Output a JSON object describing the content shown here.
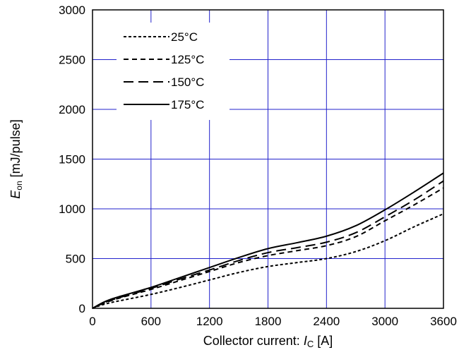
{
  "chart_data": {
    "type": "line",
    "title": "",
    "xlabel": {
      "prefix": "Collector current: ",
      "symbol": "I",
      "subscript": "C",
      "unit": " [A]"
    },
    "ylabel": {
      "symbol": "E",
      "subscript": "on",
      "unit": " [mJ/pulse]"
    },
    "xlim": [
      0,
      3600
    ],
    "ylim": [
      0,
      3000
    ],
    "xticks": [
      0,
      600,
      1200,
      1800,
      2400,
      3000,
      3600
    ],
    "yticks": [
      0,
      500,
      1000,
      1500,
      2000,
      2500,
      3000
    ],
    "xtick_labels": [
      "0",
      "600",
      "1200",
      "1800",
      "2400",
      "3000",
      "3600"
    ],
    "ytick_labels": [
      "0",
      "500",
      "1000",
      "1500",
      "2000",
      "2500",
      "3000"
    ],
    "grid": true,
    "grid_color": "#2222cc",
    "legend_position": "top-left",
    "series": [
      {
        "name": "25°C",
        "dash": "dotted",
        "x": [
          0,
          100,
          200,
          300,
          600,
          900,
          1200,
          1500,
          1800,
          2100,
          2400,
          2700,
          3000,
          3300,
          3600
        ],
        "y": [
          0,
          35,
          60,
          80,
          140,
          210,
          285,
          360,
          420,
          460,
          500,
          570,
          680,
          820,
          950
        ]
      },
      {
        "name": "125°C",
        "dash": "short-dash",
        "x": [
          0,
          100,
          200,
          300,
          600,
          900,
          1200,
          1500,
          1800,
          2100,
          2400,
          2700,
          3000,
          3300,
          3600
        ],
        "y": [
          0,
          45,
          80,
          110,
          190,
          280,
          370,
          460,
          530,
          580,
          630,
          720,
          880,
          1040,
          1210
        ]
      },
      {
        "name": "150°C",
        "dash": "long-dash",
        "x": [
          0,
          100,
          200,
          300,
          600,
          900,
          1200,
          1500,
          1800,
          2100,
          2400,
          2700,
          3000,
          3300,
          3600
        ],
        "y": [
          0,
          50,
          85,
          115,
          200,
          295,
          385,
          480,
          560,
          610,
          665,
          760,
          920,
          1090,
          1280
        ]
      },
      {
        "name": "175°C",
        "dash": "solid",
        "x": [
          0,
          100,
          200,
          300,
          600,
          900,
          1200,
          1500,
          1800,
          2100,
          2400,
          2700,
          3000,
          3300,
          3600
        ],
        "y": [
          0,
          55,
          95,
          125,
          210,
          310,
          410,
          510,
          600,
          660,
          725,
          830,
          990,
          1170,
          1360
        ]
      }
    ]
  }
}
